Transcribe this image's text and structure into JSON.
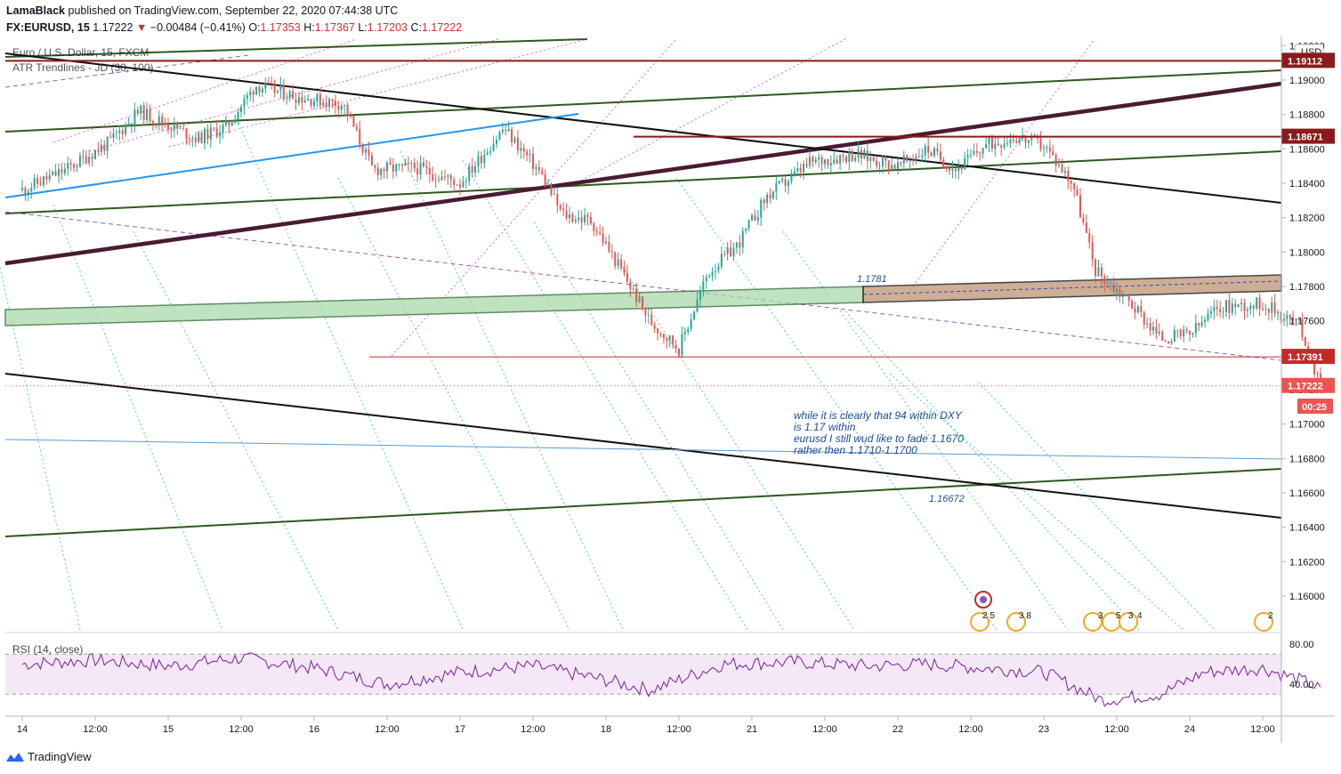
{
  "header": {
    "author": "LamaBlack",
    "published_text": "published on TradingView.com, September 22, 2020 07:44:38 UTC",
    "symbol": "FX:EURUSD, 15",
    "last": "1.17222",
    "arrow": "▼",
    "change": "−0.00484 (−0.41%)",
    "o_label": "O:",
    "o": "1.17353",
    "h_label": "H:",
    "h": "1.17367",
    "l_label": "L:",
    "l": "1.17203",
    "c_label": "C:",
    "c": "1.17222"
  },
  "legend": {
    "series_title": "Euro / U.S. Dollar, 15, FXCM",
    "indicator": "ATR Trendlines - JD (30, 100)"
  },
  "axis": {
    "currency": "USD",
    "y_ticks": [
      "1.19200",
      "1.19000",
      "1.18800",
      "1.18600",
      "1.18400",
      "1.18200",
      "1.18000",
      "1.17800",
      "1.17600",
      "1.17400",
      "1.17200",
      "1.17000",
      "1.16800",
      "1.16600",
      "1.16400",
      "1.16200",
      "1.16000"
    ],
    "x_ticks": [
      "14",
      "12:00",
      "15",
      "12:00",
      "16",
      "12:00",
      "17",
      "12:00",
      "18",
      "12:00",
      "21",
      "12:00",
      "22",
      "12:00",
      "23",
      "12:00",
      "24",
      "12:00"
    ],
    "price_tags": [
      {
        "text": "1.19112",
        "price": 1.19112,
        "color": "#8b1a1a"
      },
      {
        "text": "1.18671",
        "price": 1.18671,
        "color": "#8b1a1a"
      },
      {
        "text": "1.17391",
        "price": 1.17391,
        "color": "#c62828"
      },
      {
        "text": "1.17222",
        "price": 1.17222,
        "color": "#ef5350"
      }
    ],
    "countdown": "00:25"
  },
  "annotations": {
    "level_1781": "1.1781",
    "level_16672": "1.16672",
    "note_line1": "while it is clearly that 94 within DXY",
    "note_line2": "is 1.17 within",
    "note_line3": "eurusd I still wud like to fade 1.1670",
    "note_line4": "rather then 1.1710-1.1700"
  },
  "events": [
    {
      "text": "2 5"
    },
    {
      "text": "3 8"
    },
    {
      "text": "3"
    },
    {
      "text": "5"
    },
    {
      "text": "3"
    },
    {
      "text": "4"
    },
    {
      "text": "2"
    }
  ],
  "rsi": {
    "label": "RSI (14, close)",
    "ticks": [
      "80.00",
      "40.00"
    ],
    "upper": 70,
    "lower": 30
  },
  "footer": {
    "brand": "TradingView"
  },
  "chart_data": {
    "type": "candlestick",
    "title": "Euro / U.S. Dollar, 15, FXCM",
    "ylim": [
      1.159,
      1.1922
    ],
    "y_scale": "linear",
    "grid": false,
    "close_path": [
      [
        0,
        1.1836
      ],
      [
        0.3,
        1.1848
      ],
      [
        0.6,
        1.1864
      ],
      [
        0.8,
        1.1882
      ],
      [
        1.0,
        1.1874
      ],
      [
        1.2,
        1.1866
      ],
      [
        1.4,
        1.1873
      ],
      [
        1.6,
        1.1897
      ],
      [
        1.9,
        1.189
      ],
      [
        2.2,
        1.1886
      ],
      [
        2.4,
        1.1848
      ],
      [
        2.7,
        1.1849
      ],
      [
        3.0,
        1.184
      ],
      [
        3.3,
        1.1872
      ],
      [
        3.55,
        1.1846
      ],
      [
        3.7,
        1.1822
      ],
      [
        3.9,
        1.1818
      ],
      [
        4.1,
        1.179
      ],
      [
        4.3,
        1.176
      ],
      [
        4.5,
        1.1744
      ],
      [
        4.7,
        1.1788
      ],
      [
        4.9,
        1.1804
      ],
      [
        5.1,
        1.1832
      ],
      [
        5.4,
        1.1852
      ],
      [
        5.7,
        1.1857
      ],
      [
        6.0,
        1.185
      ],
      [
        6.2,
        1.186
      ],
      [
        6.4,
        1.1848
      ],
      [
        6.6,
        1.1862
      ],
      [
        6.8,
        1.1867
      ],
      [
        7.0,
        1.1862
      ],
      [
        7.2,
        1.184
      ],
      [
        7.35,
        1.179
      ],
      [
        7.6,
        1.177
      ],
      [
        7.8,
        1.175
      ],
      [
        8.0,
        1.1752
      ],
      [
        8.2,
        1.1768
      ],
      [
        8.5,
        1.177
      ],
      [
        8.75,
        1.1758
      ],
      [
        8.9,
        1.1722
      ]
    ],
    "rsi_path": [
      [
        0,
        60
      ],
      [
        0.5,
        64
      ],
      [
        1.0,
        58
      ],
      [
        1.5,
        66
      ],
      [
        2.0,
        56
      ],
      [
        2.5,
        40
      ],
      [
        3.0,
        52
      ],
      [
        3.5,
        58
      ],
      [
        4.0,
        44
      ],
      [
        4.3,
        34
      ],
      [
        4.8,
        60
      ],
      [
        5.3,
        62
      ],
      [
        5.8,
        58
      ],
      [
        6.2,
        60
      ],
      [
        6.6,
        56
      ],
      [
        7.0,
        52
      ],
      [
        7.4,
        24
      ],
      [
        7.8,
        30
      ],
      [
        8.1,
        52
      ],
      [
        8.5,
        56
      ],
      [
        8.8,
        42
      ],
      [
        8.9,
        34
      ]
    ],
    "horizontal_levels": [
      1.19112,
      1.18671,
      1.17391
    ],
    "zone": {
      "low": 1.1772,
      "high": 1.1786,
      "label": "1.1781"
    }
  }
}
